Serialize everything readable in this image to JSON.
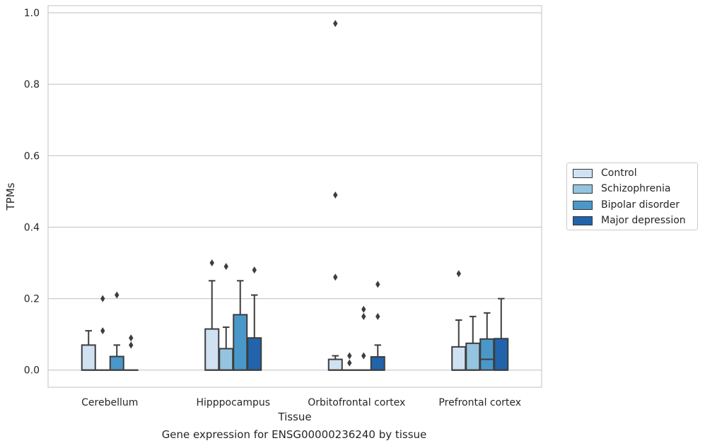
{
  "chart_data": {
    "type": "box",
    "title": "",
    "caption": "Gene expression for ENSG00000236240 by tissue",
    "xlabel": "Tissue",
    "ylabel": "TPMs",
    "ylim": [
      -0.048,
      1.02
    ],
    "yticks": [
      "0.0",
      "0.2",
      "0.4",
      "0.6",
      "0.8",
      "1.0"
    ],
    "grid": true,
    "legend_position": "right",
    "categories": [
      "Cerebellum",
      "Hipppocampus",
      "Orbitofrontal cortex",
      "Prefrontal cortex"
    ],
    "series": [
      {
        "name": "Control",
        "color": "#d0e1f2",
        "boxes": [
          {
            "q1": 0.0,
            "median": 0.0,
            "q3": 0.07,
            "whisker_low": 0.0,
            "whisker_high": 0.11,
            "outliers": []
          },
          {
            "q1": 0.0,
            "median": 0.0,
            "q3": 0.115,
            "whisker_low": 0.0,
            "whisker_high": 0.25,
            "outliers": [
              0.3
            ]
          },
          {
            "q1": 0.0,
            "median": 0.0,
            "q3": 0.03,
            "whisker_low": 0.0,
            "whisker_high": 0.04,
            "outliers": [
              0.26,
              0.49,
              0.97
            ]
          },
          {
            "q1": 0.0,
            "median": 0.0,
            "q3": 0.065,
            "whisker_low": 0.0,
            "whisker_high": 0.14,
            "outliers": [
              0.27
            ]
          }
        ]
      },
      {
        "name": "Schizophrenia",
        "color": "#94c4df",
        "boxes": [
          {
            "q1": 0.0,
            "median": 0.0,
            "q3": 0.0,
            "whisker_low": 0.0,
            "whisker_high": 0.0,
            "outliers": [
              0.11,
              0.2
            ]
          },
          {
            "q1": 0.0,
            "median": 0.0,
            "q3": 0.06,
            "whisker_low": 0.0,
            "whisker_high": 0.12,
            "outliers": [
              0.29
            ]
          },
          {
            "q1": 0.0,
            "median": 0.0,
            "q3": 0.0,
            "whisker_low": 0.0,
            "whisker_high": 0.0,
            "outliers": [
              0.02,
              0.04
            ]
          },
          {
            "q1": 0.0,
            "median": 0.0,
            "q3": 0.075,
            "whisker_low": 0.0,
            "whisker_high": 0.15,
            "outliers": []
          }
        ]
      },
      {
        "name": "Bipolar disorder",
        "color": "#4a98c9",
        "boxes": [
          {
            "q1": 0.0,
            "median": 0.0,
            "q3": 0.038,
            "whisker_low": 0.0,
            "whisker_high": 0.07,
            "outliers": [
              0.21
            ]
          },
          {
            "q1": 0.0,
            "median": 0.0,
            "q3": 0.155,
            "whisker_low": 0.0,
            "whisker_high": 0.25,
            "outliers": []
          },
          {
            "q1": 0.0,
            "median": 0.0,
            "q3": 0.0,
            "whisker_low": 0.0,
            "whisker_high": 0.0,
            "outliers": [
              0.04,
              0.15,
              0.17
            ]
          },
          {
            "q1": 0.0,
            "median": 0.03,
            "q3": 0.087,
            "whisker_low": 0.0,
            "whisker_high": 0.16,
            "outliers": []
          }
        ]
      },
      {
        "name": "Major depression",
        "color": "#2164ab",
        "boxes": [
          {
            "q1": 0.0,
            "median": 0.0,
            "q3": 0.0,
            "whisker_low": 0.0,
            "whisker_high": 0.0,
            "outliers": [
              0.07,
              0.09
            ]
          },
          {
            "q1": 0.0,
            "median": 0.0,
            "q3": 0.09,
            "whisker_low": 0.0,
            "whisker_high": 0.21,
            "outliers": [
              0.28
            ]
          },
          {
            "q1": 0.0,
            "median": 0.0,
            "q3": 0.037,
            "whisker_low": 0.0,
            "whisker_high": 0.07,
            "outliers": [
              0.15,
              0.24
            ]
          },
          {
            "q1": 0.0,
            "median": 0.0,
            "q3": 0.088,
            "whisker_low": 0.0,
            "whisker_high": 0.2,
            "outliers": []
          }
        ]
      }
    ]
  }
}
